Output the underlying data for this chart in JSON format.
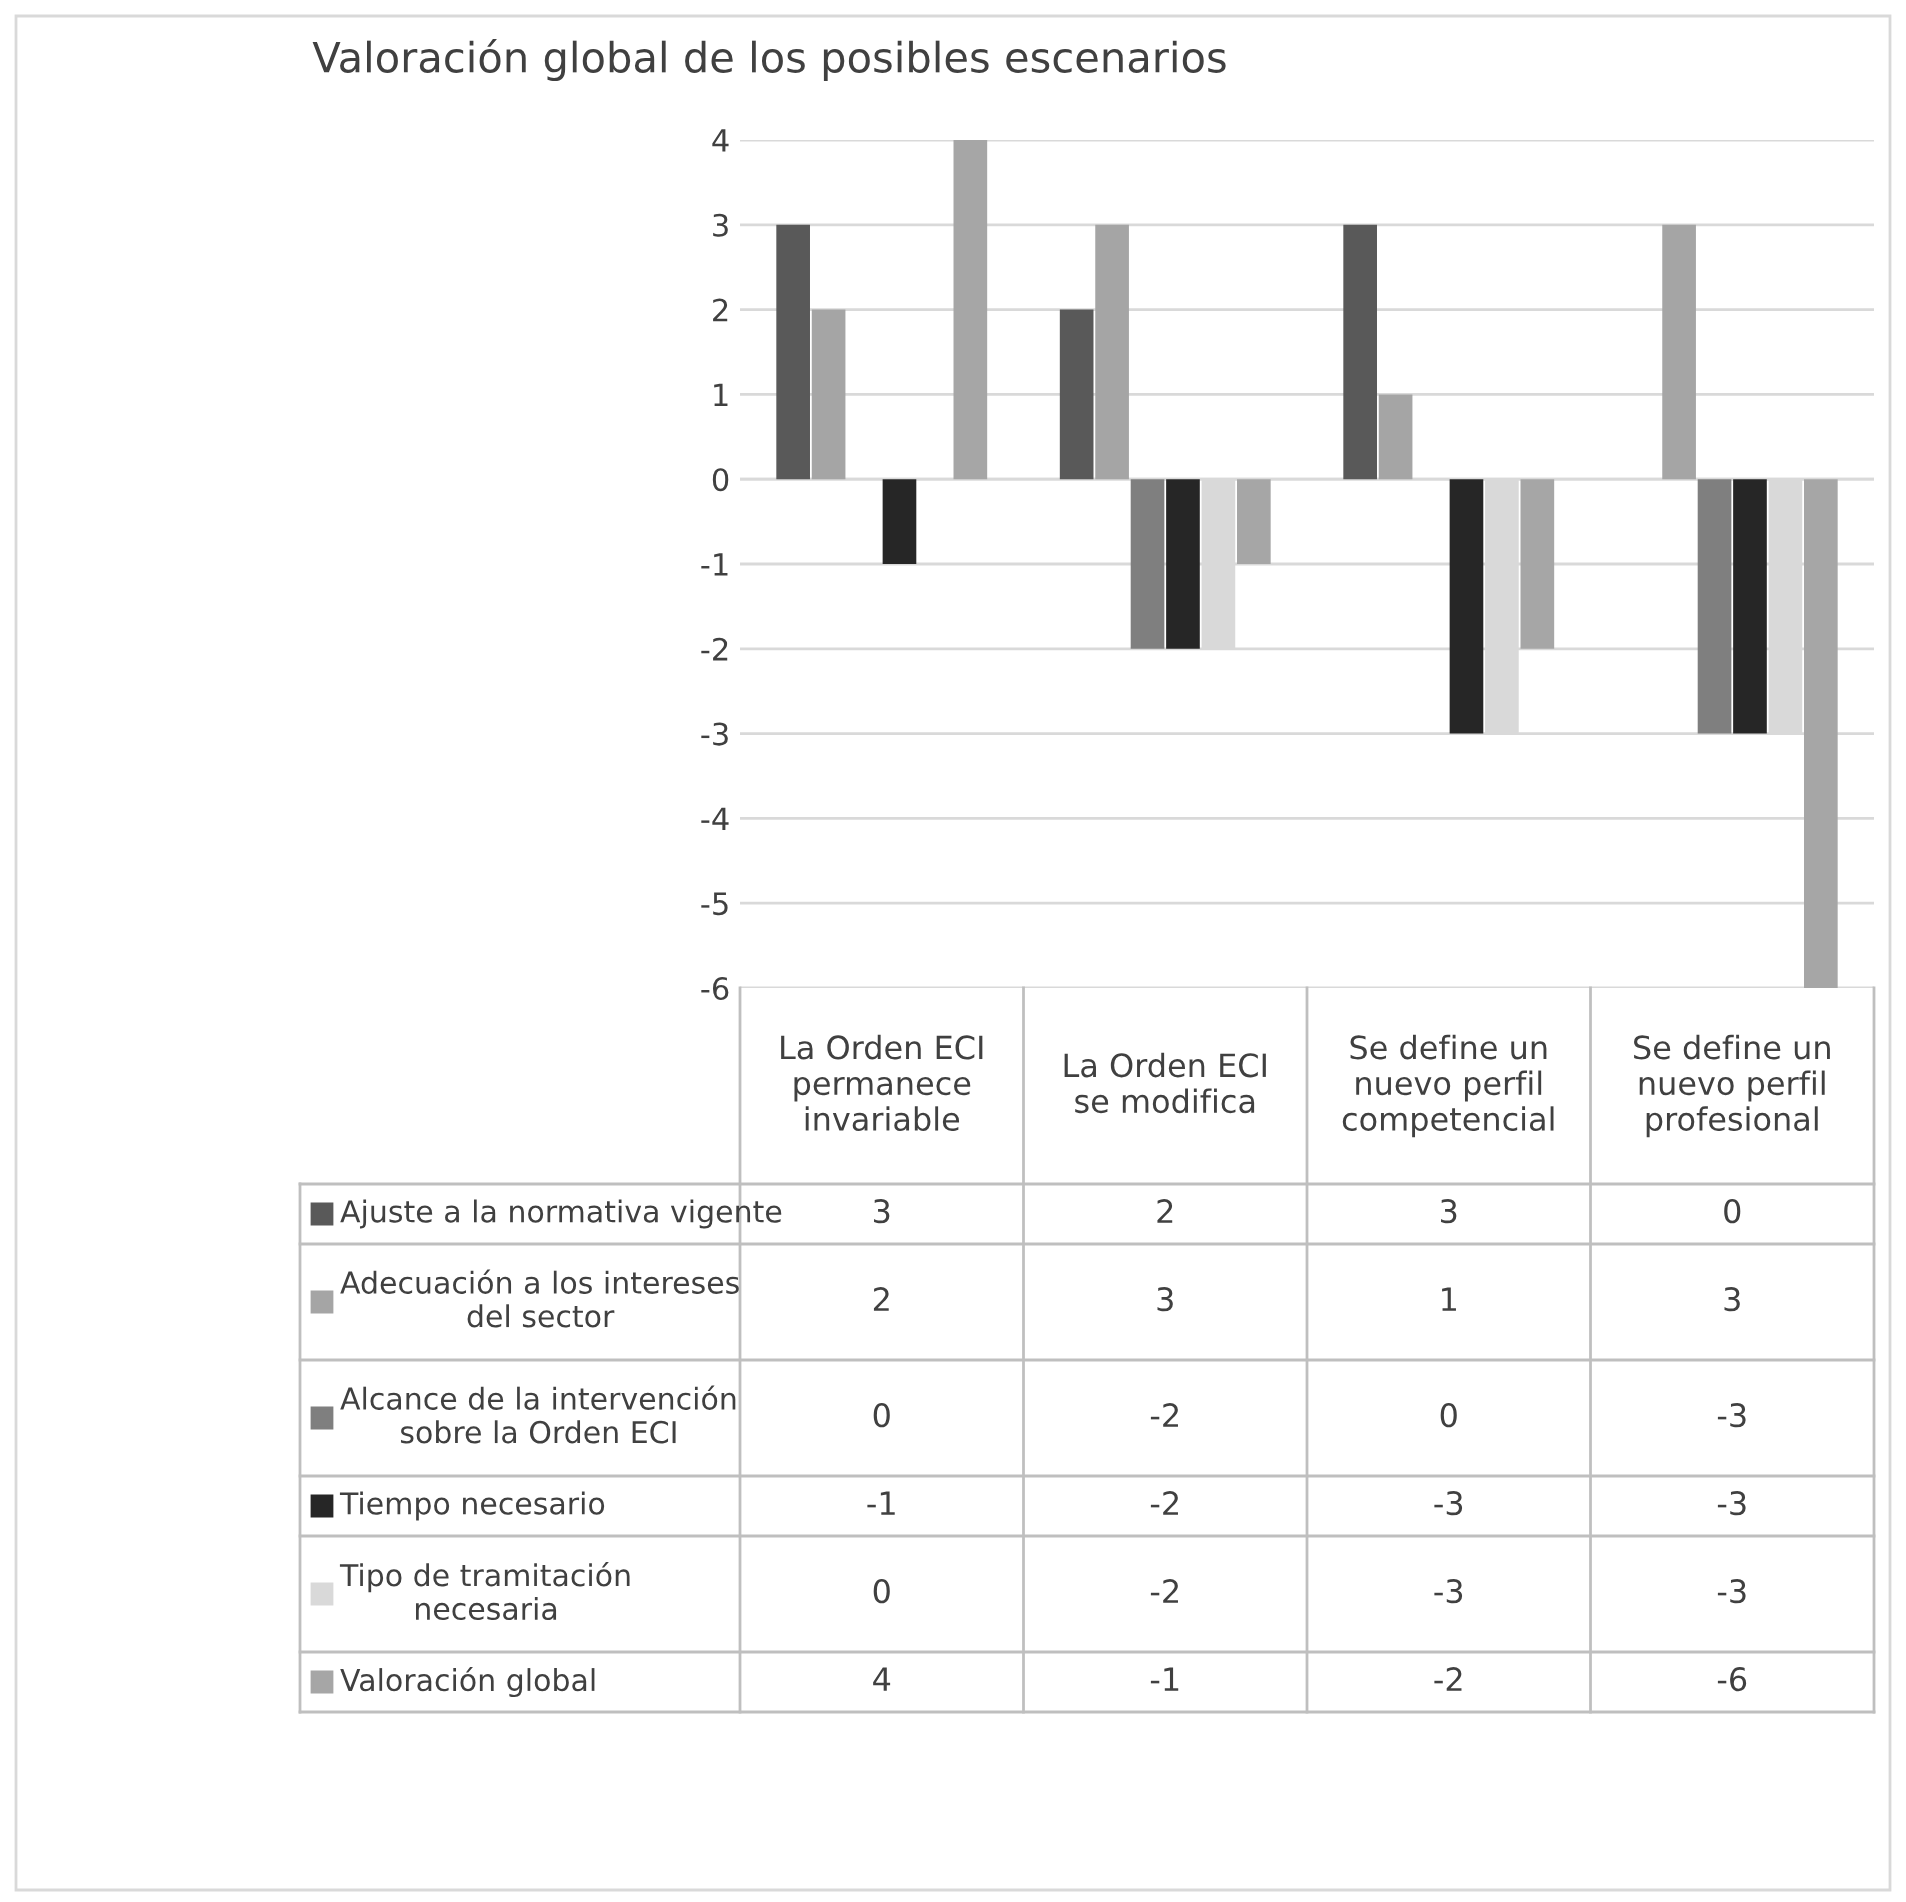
{
  "chart_data": {
    "type": "bar",
    "title": "Valoración global de los posibles escenarios",
    "categories": [
      "La Orden ECI\npermanece\ninvariable",
      "La Orden ECI\nse modifica",
      "Se define un\nnuevo perfil\ncompetencial",
      "Se define un\nnuevo perfil\nprofesional"
    ],
    "series": [
      {
        "name": "Ajuste a la normativa vigente",
        "color": "#595959",
        "values": [
          3,
          2,
          3,
          0
        ]
      },
      {
        "name": "Adecuación a los intereses\ndel sector",
        "color": "#a5a5a5",
        "values": [
          2,
          3,
          1,
          3
        ]
      },
      {
        "name": "Alcance de la intervención\nsobre la Orden ECI",
        "color": "#7f7f7f",
        "values": [
          0,
          -2,
          0,
          -3
        ]
      },
      {
        "name": "Tiempo necesario",
        "color": "#262626",
        "values": [
          -1,
          -2,
          -3,
          -3
        ]
      },
      {
        "name": "Tipo de tramitación\nnecesaria",
        "color": "#d9d9d9",
        "values": [
          0,
          -2,
          -3,
          -3
        ]
      },
      {
        "name": "Valoración global",
        "color": "#a6a6a6",
        "values": [
          4,
          -1,
          -2,
          -6
        ]
      }
    ],
    "ylim": [
      -6,
      4
    ],
    "yticks": [
      -6,
      -5,
      -4,
      -3,
      -2,
      -1,
      0,
      1,
      2,
      3,
      4
    ],
    "grid": "y",
    "data_labels": true,
    "legend": "bottom"
  }
}
